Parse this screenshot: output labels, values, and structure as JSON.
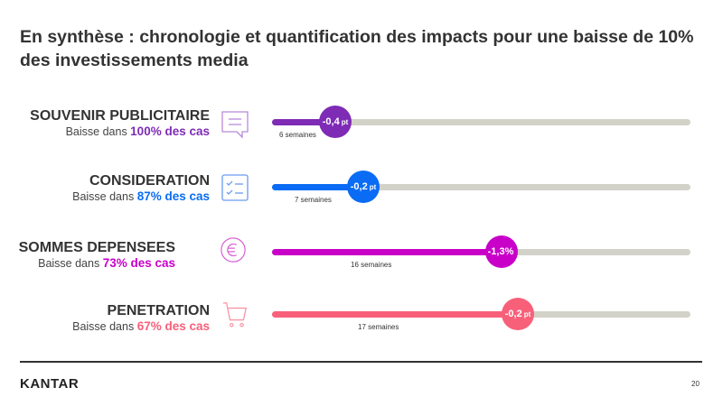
{
  "title": "En synthèse : chronologie et quantification des impacts pour une baisse de 10% des investissements media",
  "rows": [
    {
      "heading": "SOUVENIR  PUBLICITAIRE",
      "prefix": "Baisse dans ",
      "highlight": "100% des cas",
      "value": "-0,4",
      "unit": "pt",
      "weeks": "6 semaines",
      "color": "#7e2bb5",
      "icon": "speech-bubble-icon"
    },
    {
      "heading": "CONSIDERATION",
      "prefix": "Baisse dans ",
      "highlight": "87% des cas",
      "value": "-0,2",
      "unit": "pt",
      "weeks": "7 semaines",
      "color": "#0a6cf5",
      "icon": "checklist-icon"
    },
    {
      "heading": "SOMMES DEPENSEES",
      "prefix": "Baisse dans ",
      "highlight": "73% des cas",
      "value": "-1,3%",
      "unit": "",
      "weeks": "16 semaines",
      "color": "#c800c8",
      "icon": "euro-icon"
    },
    {
      "heading": "PENETRATION",
      "prefix": "Baisse dans ",
      "highlight": "67% des cas",
      "value": "-0,2",
      "unit": "pt",
      "weeks": "17 semaines",
      "color": "#f8607a",
      "icon": "shopping-cart-icon"
    }
  ],
  "footer": {
    "logo": "KANTAR",
    "page": "20"
  },
  "track_color": "#d3d2c9"
}
